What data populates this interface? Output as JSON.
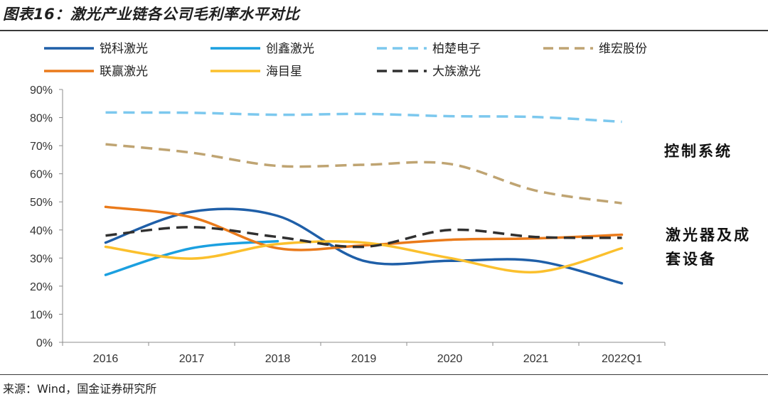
{
  "title": "图表16：激光产业链各公司毛利率水平对比",
  "source": "来源：Wind，国金证券研究所",
  "annotations": [
    "控制系统",
    "激光器及成套设备"
  ],
  "chart_data": {
    "type": "line",
    "title": "图表16：激光产业链各公司毛利率水平对比",
    "xlabel": "",
    "ylabel": "",
    "categories": [
      "2016",
      "2017",
      "2018",
      "2019",
      "2020",
      "2021",
      "2022Q1"
    ],
    "ylim": [
      0,
      90
    ],
    "yticks": [
      0,
      10,
      20,
      30,
      40,
      50,
      60,
      70,
      80,
      90
    ],
    "ytick_labels": [
      "0%",
      "10%",
      "20%",
      "30%",
      "40%",
      "50%",
      "60%",
      "70%",
      "80%",
      "90%"
    ],
    "legend_position": "top",
    "series": [
      {
        "name": "锐科激光",
        "color": "#1f5fa8",
        "dashed": false,
        "values": [
          35.5,
          46.5,
          45.0,
          29.0,
          29.0,
          29.0,
          21.0
        ]
      },
      {
        "name": "创鑫激光",
        "color": "#1ba0e0",
        "dashed": false,
        "values": [
          24.0,
          33.5,
          36.0,
          null,
          null,
          null,
          null
        ]
      },
      {
        "name": "柏楚电子",
        "color": "#7cc8ee",
        "dashed": true,
        "values": [
          81.8,
          81.7,
          81.0,
          81.3,
          80.5,
          80.2,
          78.5
        ]
      },
      {
        "name": "维宏股份",
        "color": "#bfa472",
        "dashed": true,
        "values": [
          70.5,
          67.5,
          62.8,
          63.2,
          63.5,
          54.0,
          49.5
        ]
      },
      {
        "name": "联赢激光",
        "color": "#ea7a1a",
        "dashed": false,
        "values": [
          48.2,
          44.5,
          33.5,
          34.5,
          36.5,
          37.0,
          38.3
        ]
      },
      {
        "name": "海目星",
        "color": "#fbc02d",
        "dashed": false,
        "values": [
          34.0,
          29.8,
          35.0,
          35.5,
          30.0,
          25.0,
          33.5
        ]
      },
      {
        "name": "大族激光",
        "color": "#303030",
        "dashed": true,
        "values": [
          38.0,
          41.0,
          37.5,
          34.0,
          40.0,
          37.5,
          37.2
        ]
      }
    ]
  }
}
